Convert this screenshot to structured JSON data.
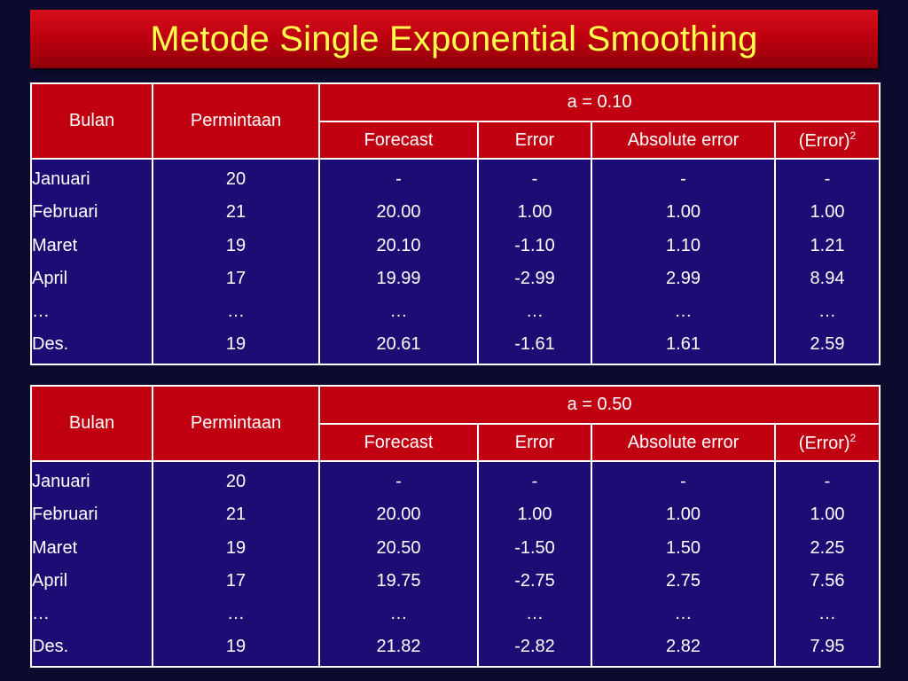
{
  "title": "Metode Single Exponential Smoothing",
  "headers": {
    "bulan": "Bulan",
    "permintaan": "Permintaan",
    "forecast": "Forecast",
    "error": "Error",
    "absolute_error": "Absolute error",
    "error_sq": "(Error)",
    "error_sq_sup": "2"
  },
  "tables": [
    {
      "alpha_label": "a = 0.10",
      "rows": [
        {
          "bulan": "Januari",
          "permintaan": "20",
          "forecast": "-",
          "error": "-",
          "abs": "-",
          "sq": "-"
        },
        {
          "bulan": "Februari",
          "permintaan": "21",
          "forecast": "20.00",
          "error": "1.00",
          "abs": "1.00",
          "sq": "1.00"
        },
        {
          "bulan": "Maret",
          "permintaan": "19",
          "forecast": "20.10",
          "error": "-1.10",
          "abs": "1.10",
          "sq": "1.21"
        },
        {
          "bulan": "April",
          "permintaan": "17",
          "forecast": "19.99",
          "error": "-2.99",
          "abs": "2.99",
          "sq": "8.94"
        },
        {
          "bulan": "…",
          "permintaan": "…",
          "forecast": "…",
          "error": "…",
          "abs": "…",
          "sq": "…"
        },
        {
          "bulan": "Des.",
          "permintaan": "19",
          "forecast": "20.61",
          "error": "-1.61",
          "abs": "1.61",
          "sq": "2.59"
        }
      ]
    },
    {
      "alpha_label": "a = 0.50",
      "rows": [
        {
          "bulan": "Januari",
          "permintaan": "20",
          "forecast": "-",
          "error": "-",
          "abs": "-",
          "sq": "-"
        },
        {
          "bulan": "Februari",
          "permintaan": "21",
          "forecast": "20.00",
          "error": "1.00",
          "abs": "1.00",
          "sq": "1.00"
        },
        {
          "bulan": "Maret",
          "permintaan": "19",
          "forecast": "20.50",
          "error": "-1.50",
          "abs": "1.50",
          "sq": "2.25"
        },
        {
          "bulan": "April",
          "permintaan": "17",
          "forecast": "19.75",
          "error": "-2.75",
          "abs": "2.75",
          "sq": "7.56"
        },
        {
          "bulan": "…",
          "permintaan": "…",
          "forecast": "…",
          "error": "…",
          "abs": "…",
          "sq": "…"
        },
        {
          "bulan": "Des.",
          "permintaan": "19",
          "forecast": "21.82",
          "error": "-2.82",
          "abs": "2.82",
          "sq": "7.95"
        }
      ]
    }
  ]
}
